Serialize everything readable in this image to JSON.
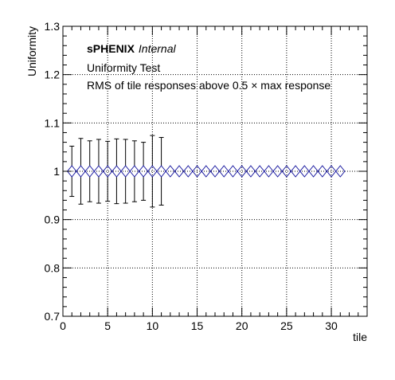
{
  "chart_data": {
    "type": "scatter",
    "title": "",
    "xlabel": "tile",
    "ylabel": "Uniformity",
    "xlim": [
      0,
      34
    ],
    "ylim": [
      0.7,
      1.3
    ],
    "xticks": [
      0,
      5,
      10,
      15,
      20,
      25,
      30
    ],
    "yticks": [
      0.7,
      0.8,
      0.9,
      1,
      1.1,
      1.2,
      1.3
    ],
    "grid": true,
    "marker": "open-diamond",
    "marker_color": "#1a1aa0",
    "annotations": {
      "experiment": "sPHENIX",
      "status": "Internal",
      "test_name": "Uniformity Test",
      "description": "RMS of tile responses above 0.5 × max response"
    },
    "points": [
      {
        "x": 1,
        "y": 1.0,
        "err": 0.052
      },
      {
        "x": 2,
        "y": 1.0,
        "err": 0.068
      },
      {
        "x": 3,
        "y": 1.0,
        "err": 0.063
      },
      {
        "x": 4,
        "y": 1.0,
        "err": 0.066
      },
      {
        "x": 5,
        "y": 1.0,
        "err": 0.062
      },
      {
        "x": 6,
        "y": 1.0,
        "err": 0.067
      },
      {
        "x": 7,
        "y": 1.0,
        "err": 0.066
      },
      {
        "x": 8,
        "y": 1.0,
        "err": 0.063
      },
      {
        "x": 9,
        "y": 1.0,
        "err": 0.06
      },
      {
        "x": 10,
        "y": 1.0,
        "err": 0.074
      },
      {
        "x": 11,
        "y": 1.0,
        "err": 0.07
      },
      {
        "x": 12,
        "y": 1.0,
        "err": 0
      },
      {
        "x": 13,
        "y": 1.0,
        "err": 0
      },
      {
        "x": 14,
        "y": 1.0,
        "err": 0
      },
      {
        "x": 15,
        "y": 1.0,
        "err": 0
      },
      {
        "x": 16,
        "y": 1.0,
        "err": 0
      },
      {
        "x": 17,
        "y": 1.0,
        "err": 0
      },
      {
        "x": 18,
        "y": 1.0,
        "err": 0
      },
      {
        "x": 19,
        "y": 1.0,
        "err": 0
      },
      {
        "x": 20,
        "y": 1.0,
        "err": 0
      },
      {
        "x": 21,
        "y": 1.0,
        "err": 0
      },
      {
        "x": 22,
        "y": 1.0,
        "err": 0
      },
      {
        "x": 23,
        "y": 1.0,
        "err": 0
      },
      {
        "x": 24,
        "y": 1.0,
        "err": 0
      },
      {
        "x": 25,
        "y": 1.0,
        "err": 0
      },
      {
        "x": 26,
        "y": 1.0,
        "err": 0
      },
      {
        "x": 27,
        "y": 1.0,
        "err": 0
      },
      {
        "x": 28,
        "y": 1.0,
        "err": 0
      },
      {
        "x": 29,
        "y": 1.0,
        "err": 0
      },
      {
        "x": 30,
        "y": 1.0,
        "err": 0
      },
      {
        "x": 31,
        "y": 1.0,
        "err": 0
      }
    ]
  }
}
